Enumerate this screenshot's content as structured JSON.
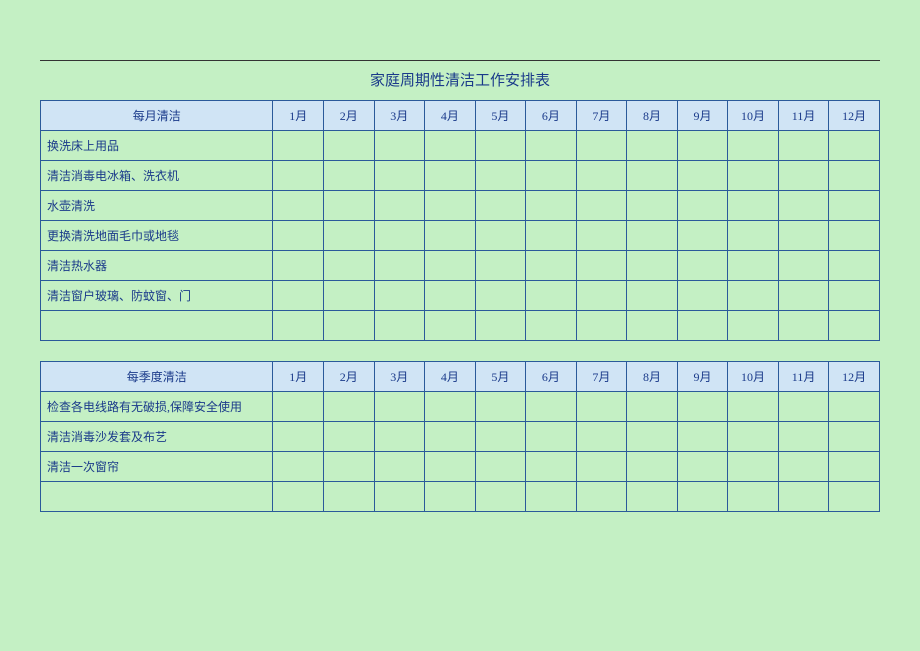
{
  "title": "家庭周期性清洁工作安排表",
  "months": [
    "1月",
    "2月",
    "3月",
    "4月",
    "5月",
    "6月",
    "7月",
    "8月",
    "9月",
    "10月",
    "11月",
    "12月"
  ],
  "monthly": {
    "header": "每月清洁",
    "tasks": [
      "换洗床上用品",
      "清洁消毒电冰箱、洗衣机",
      "水壶清洗",
      "更换清洗地面毛巾或地毯",
      "清洁热水器",
      "清洁窗户玻璃、防蚊窗、门",
      ""
    ]
  },
  "quarterly": {
    "header": "每季度清洁",
    "tasks": [
      "检查各电线路有无破损,保障安全使用",
      "清洁消毒沙发套及布艺",
      "清洁一次窗帘",
      ""
    ]
  },
  "colors": {
    "background": "#c4f0c4",
    "header_bg": "#d0e4f5",
    "border": "#2a5a9a",
    "text": "#1a3a8a"
  }
}
